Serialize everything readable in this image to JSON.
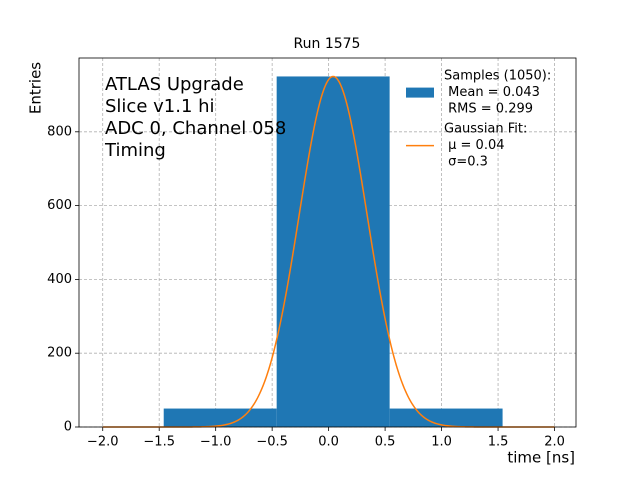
{
  "chart_data": {
    "type": "histogram",
    "title": "Run 1575",
    "xlabel": "time [ns]",
    "ylabel": "Entries",
    "bins": [
      -1.46,
      -0.46,
      0.54,
      1.54
    ],
    "values": [
      50,
      950,
      50
    ],
    "xlim": [
      -2.21,
      2.19
    ],
    "ylim": [
      0,
      1000
    ],
    "xticks": [
      {
        "value": -2,
        "label": "−2.0"
      },
      {
        "value": -1.5,
        "label": "−1.5"
      },
      {
        "value": -1,
        "label": "−1.0"
      },
      {
        "value": -0.5,
        "label": "−0.5"
      },
      {
        "value": 0,
        "label": "0.0"
      },
      {
        "value": 0.5,
        "label": "0.5"
      },
      {
        "value": 1,
        "label": "1.0"
      },
      {
        "value": 1.5,
        "label": "1.5"
      },
      {
        "value": 2,
        "label": "2.0"
      }
    ],
    "yticks": [
      0,
      200,
      400,
      600,
      800
    ],
    "grid": true,
    "series": [
      {
        "name": "Samples (1050):",
        "stats": [
          " Mean = 0.043",
          " RMS = 0.299"
        ],
        "color": "#1f77b4"
      },
      {
        "name": "Gaussian Fit:",
        "stats": [
          " μ = 0.04",
          " σ=0.3"
        ],
        "color": "#ff7f0e",
        "fit": {
          "mu": 0.04,
          "sigma": 0.3,
          "amplitude": 950,
          "range": [
            -2,
            2
          ]
        }
      }
    ],
    "legend": "upper right",
    "annotation": [
      "ATLAS Upgrade",
      "Slice v1.1 hi",
      "ADC 0, Channel 058",
      "Timing"
    ]
  }
}
